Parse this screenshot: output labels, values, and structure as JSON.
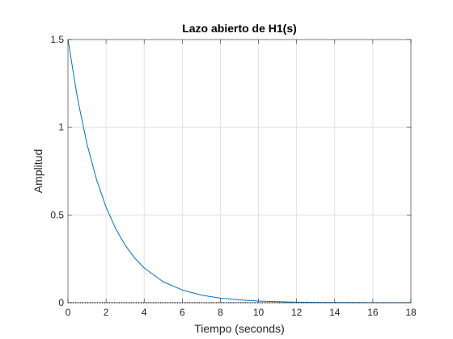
{
  "chart_data": {
    "type": "line",
    "title": "Lazo abierto de H1(s)",
    "xlabel": "Tiempo (seconds)",
    "ylabel": "Amplitud",
    "xlim": [
      0,
      18
    ],
    "ylim": [
      0,
      1.5
    ],
    "xticks": [
      0,
      2,
      4,
      6,
      8,
      10,
      12,
      14,
      16,
      18
    ],
    "yticks": [
      0,
      0.5,
      1,
      1.5
    ],
    "xtick_labels": [
      "0",
      "2",
      "4",
      "6",
      "8",
      "10",
      "12",
      "14",
      "16",
      "18"
    ],
    "ytick_labels": [
      "0",
      "0.5",
      "1",
      "1.5"
    ],
    "grid": true,
    "legend": "none",
    "series": [
      {
        "color": "#0072BD",
        "x": [
          0,
          0.5,
          1,
          1.5,
          2,
          2.5,
          3,
          3.5,
          4,
          5,
          6,
          7,
          8,
          9,
          10,
          11,
          12,
          13,
          14,
          15,
          16,
          17,
          18
        ],
        "y": [
          1.5,
          1.165,
          0.904,
          0.702,
          0.545,
          0.423,
          0.328,
          0.255,
          0.198,
          0.119,
          0.072,
          0.043,
          0.026,
          0.016,
          0.009,
          0.006,
          0.003,
          0.002,
          0.001,
          0.001,
          0.0,
          0.0,
          0.0
        ]
      }
    ],
    "baseline": {
      "value": 0,
      "color": "#000000",
      "style": "dotted"
    }
  }
}
